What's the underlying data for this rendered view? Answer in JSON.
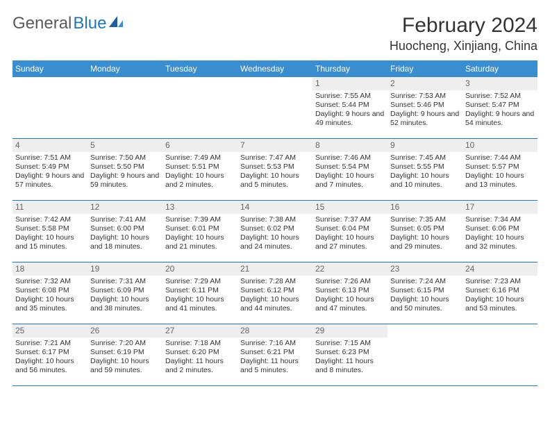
{
  "brand": {
    "name_part1": "General",
    "name_part2": "Blue",
    "text_color": "#58595b",
    "accent_color": "#2176b8"
  },
  "calendar": {
    "title": "February 2024",
    "location": "Huocheng, Xinjiang, China",
    "header_bg": "#3a8dce",
    "header_text_color": "#ffffff",
    "row_border_color": "#2176b8",
    "daynum_bg": "#eeeeee",
    "day_headers": [
      "Sunday",
      "Monday",
      "Tuesday",
      "Wednesday",
      "Thursday",
      "Friday",
      "Saturday"
    ],
    "weeks": [
      [
        {
          "n": "",
          "sunrise": "",
          "sunset": "",
          "daylight": ""
        },
        {
          "n": "",
          "sunrise": "",
          "sunset": "",
          "daylight": ""
        },
        {
          "n": "",
          "sunrise": "",
          "sunset": "",
          "daylight": ""
        },
        {
          "n": "",
          "sunrise": "",
          "sunset": "",
          "daylight": ""
        },
        {
          "n": "1",
          "sunrise": "Sunrise: 7:55 AM",
          "sunset": "Sunset: 5:44 PM",
          "daylight": "Daylight: 9 hours and 49 minutes."
        },
        {
          "n": "2",
          "sunrise": "Sunrise: 7:53 AM",
          "sunset": "Sunset: 5:46 PM",
          "daylight": "Daylight: 9 hours and 52 minutes."
        },
        {
          "n": "3",
          "sunrise": "Sunrise: 7:52 AM",
          "sunset": "Sunset: 5:47 PM",
          "daylight": "Daylight: 9 hours and 54 minutes."
        }
      ],
      [
        {
          "n": "4",
          "sunrise": "Sunrise: 7:51 AM",
          "sunset": "Sunset: 5:49 PM",
          "daylight": "Daylight: 9 hours and 57 minutes."
        },
        {
          "n": "5",
          "sunrise": "Sunrise: 7:50 AM",
          "sunset": "Sunset: 5:50 PM",
          "daylight": "Daylight: 9 hours and 59 minutes."
        },
        {
          "n": "6",
          "sunrise": "Sunrise: 7:49 AM",
          "sunset": "Sunset: 5:51 PM",
          "daylight": "Daylight: 10 hours and 2 minutes."
        },
        {
          "n": "7",
          "sunrise": "Sunrise: 7:47 AM",
          "sunset": "Sunset: 5:53 PM",
          "daylight": "Daylight: 10 hours and 5 minutes."
        },
        {
          "n": "8",
          "sunrise": "Sunrise: 7:46 AM",
          "sunset": "Sunset: 5:54 PM",
          "daylight": "Daylight: 10 hours and 7 minutes."
        },
        {
          "n": "9",
          "sunrise": "Sunrise: 7:45 AM",
          "sunset": "Sunset: 5:55 PM",
          "daylight": "Daylight: 10 hours and 10 minutes."
        },
        {
          "n": "10",
          "sunrise": "Sunrise: 7:44 AM",
          "sunset": "Sunset: 5:57 PM",
          "daylight": "Daylight: 10 hours and 13 minutes."
        }
      ],
      [
        {
          "n": "11",
          "sunrise": "Sunrise: 7:42 AM",
          "sunset": "Sunset: 5:58 PM",
          "daylight": "Daylight: 10 hours and 15 minutes."
        },
        {
          "n": "12",
          "sunrise": "Sunrise: 7:41 AM",
          "sunset": "Sunset: 6:00 PM",
          "daylight": "Daylight: 10 hours and 18 minutes."
        },
        {
          "n": "13",
          "sunrise": "Sunrise: 7:39 AM",
          "sunset": "Sunset: 6:01 PM",
          "daylight": "Daylight: 10 hours and 21 minutes."
        },
        {
          "n": "14",
          "sunrise": "Sunrise: 7:38 AM",
          "sunset": "Sunset: 6:02 PM",
          "daylight": "Daylight: 10 hours and 24 minutes."
        },
        {
          "n": "15",
          "sunrise": "Sunrise: 7:37 AM",
          "sunset": "Sunset: 6:04 PM",
          "daylight": "Daylight: 10 hours and 27 minutes."
        },
        {
          "n": "16",
          "sunrise": "Sunrise: 7:35 AM",
          "sunset": "Sunset: 6:05 PM",
          "daylight": "Daylight: 10 hours and 29 minutes."
        },
        {
          "n": "17",
          "sunrise": "Sunrise: 7:34 AM",
          "sunset": "Sunset: 6:06 PM",
          "daylight": "Daylight: 10 hours and 32 minutes."
        }
      ],
      [
        {
          "n": "18",
          "sunrise": "Sunrise: 7:32 AM",
          "sunset": "Sunset: 6:08 PM",
          "daylight": "Daylight: 10 hours and 35 minutes."
        },
        {
          "n": "19",
          "sunrise": "Sunrise: 7:31 AM",
          "sunset": "Sunset: 6:09 PM",
          "daylight": "Daylight: 10 hours and 38 minutes."
        },
        {
          "n": "20",
          "sunrise": "Sunrise: 7:29 AM",
          "sunset": "Sunset: 6:11 PM",
          "daylight": "Daylight: 10 hours and 41 minutes."
        },
        {
          "n": "21",
          "sunrise": "Sunrise: 7:28 AM",
          "sunset": "Sunset: 6:12 PM",
          "daylight": "Daylight: 10 hours and 44 minutes."
        },
        {
          "n": "22",
          "sunrise": "Sunrise: 7:26 AM",
          "sunset": "Sunset: 6:13 PM",
          "daylight": "Daylight: 10 hours and 47 minutes."
        },
        {
          "n": "23",
          "sunrise": "Sunrise: 7:24 AM",
          "sunset": "Sunset: 6:15 PM",
          "daylight": "Daylight: 10 hours and 50 minutes."
        },
        {
          "n": "24",
          "sunrise": "Sunrise: 7:23 AM",
          "sunset": "Sunset: 6:16 PM",
          "daylight": "Daylight: 10 hours and 53 minutes."
        }
      ],
      [
        {
          "n": "25",
          "sunrise": "Sunrise: 7:21 AM",
          "sunset": "Sunset: 6:17 PM",
          "daylight": "Daylight: 10 hours and 56 minutes."
        },
        {
          "n": "26",
          "sunrise": "Sunrise: 7:20 AM",
          "sunset": "Sunset: 6:19 PM",
          "daylight": "Daylight: 10 hours and 59 minutes."
        },
        {
          "n": "27",
          "sunrise": "Sunrise: 7:18 AM",
          "sunset": "Sunset: 6:20 PM",
          "daylight": "Daylight: 11 hours and 2 minutes."
        },
        {
          "n": "28",
          "sunrise": "Sunrise: 7:16 AM",
          "sunset": "Sunset: 6:21 PM",
          "daylight": "Daylight: 11 hours and 5 minutes."
        },
        {
          "n": "29",
          "sunrise": "Sunrise: 7:15 AM",
          "sunset": "Sunset: 6:23 PM",
          "daylight": "Daylight: 11 hours and 8 minutes."
        },
        {
          "n": "",
          "sunrise": "",
          "sunset": "",
          "daylight": ""
        },
        {
          "n": "",
          "sunrise": "",
          "sunset": "",
          "daylight": ""
        }
      ]
    ]
  }
}
